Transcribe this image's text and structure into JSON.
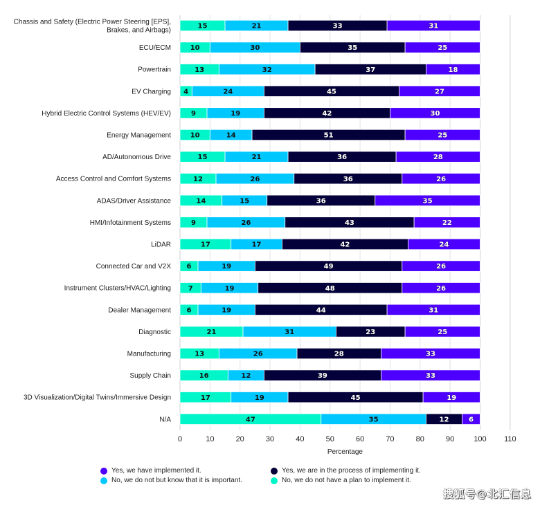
{
  "chart_data": {
    "type": "bar",
    "orientation": "horizontal",
    "stacked": true,
    "title": "",
    "xlabel": "Percentage",
    "ylabel": "",
    "xlim": [
      0,
      110
    ],
    "xticks": [
      0,
      10,
      20,
      30,
      40,
      50,
      60,
      70,
      80,
      90,
      100,
      110
    ],
    "grid": true,
    "legend_position": "bottom",
    "categories": [
      [
        "Chassis and Safety (Electric Power Steering [EPS],",
        "Brakes, and Airbags)"
      ],
      [
        "ECU/ECM"
      ],
      [
        "Powertrain"
      ],
      [
        "EV Charging"
      ],
      [
        "Hybrid Electric Control Systems (HEV/EV)"
      ],
      [
        "Energy Management"
      ],
      [
        "AD/Autonomous Drive"
      ],
      [
        "Access Control and Comfort Systems"
      ],
      [
        "ADAS/Driver Assistance"
      ],
      [
        "HMI/Infotainment Systems"
      ],
      [
        "LiDAR"
      ],
      [
        "Connected Car and V2X"
      ],
      [
        "Instrument Clusters/HVAC/Lighting"
      ],
      [
        "Dealer Management"
      ],
      [
        "Diagnostic"
      ],
      [
        "Manufacturing"
      ],
      [
        "Supply Chain"
      ],
      [
        "3D Visualization/Digital Twins/Immersive Design"
      ],
      [
        "N/A"
      ]
    ],
    "series": [
      {
        "name": "No, we do not have a plan to implement it.",
        "color": "#00F5C8",
        "text_color": "#111111",
        "values": [
          15,
          10,
          13,
          4,
          9,
          10,
          15,
          12,
          14,
          9,
          17,
          6,
          7,
          6,
          21,
          13,
          16,
          17,
          47
        ]
      },
      {
        "name": "No, we do not but know that it is important.",
        "color": "#00C8FF",
        "text_color": "#111111",
        "values": [
          21,
          30,
          32,
          24,
          19,
          14,
          21,
          26,
          15,
          26,
          17,
          19,
          19,
          19,
          31,
          26,
          12,
          19,
          35
        ]
      },
      {
        "name": "Yes, we are in the process of implementing it.",
        "color": "#03003A",
        "text_color": "#ffffff",
        "values": [
          33,
          35,
          37,
          45,
          42,
          51,
          36,
          36,
          36,
          43,
          42,
          49,
          48,
          44,
          23,
          28,
          39,
          45,
          12
        ]
      },
      {
        "name": "Yes, we have implemented it.",
        "color": "#4D00FF",
        "text_color": "#ffffff",
        "values": [
          31,
          25,
          18,
          27,
          30,
          25,
          28,
          26,
          35,
          22,
          24,
          26,
          26,
          31,
          25,
          33,
          33,
          19,
          6
        ]
      }
    ],
    "legend_order": [
      3,
      2,
      1,
      0
    ]
  },
  "watermark": "搜狐号@北汇信息"
}
